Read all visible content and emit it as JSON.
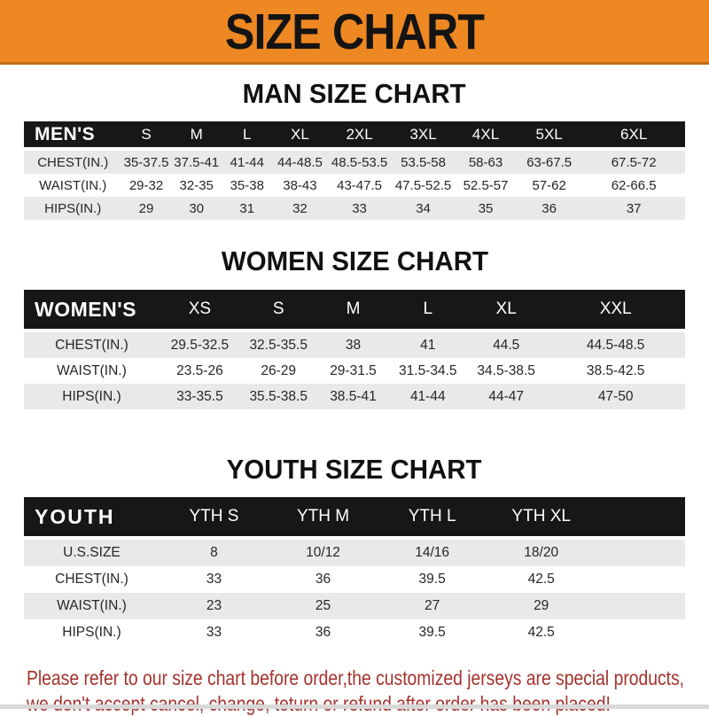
{
  "banner": {
    "title": "SIZE CHART"
  },
  "sections": [
    {
      "heading": "MAN SIZE CHART",
      "header_label": "MEN'S",
      "columns": [
        "S",
        "M",
        "L",
        "XL",
        "2XL",
        "3XL",
        "4XL",
        "5XL",
        "6XL"
      ],
      "rows": [
        {
          "label": "CHEST(IN.)",
          "values": [
            "35-37.5",
            "37.5-41",
            "41-44",
            "44-48.5",
            "48.5-53.5",
            "53.5-58",
            "58-63",
            "63-67.5",
            "67.5-72"
          ]
        },
        {
          "label": "WAIST(IN.)",
          "values": [
            "29-32",
            "32-35",
            "35-38",
            "38-43",
            "43-47.5",
            "47.5-52.5",
            "52.5-57",
            "57-62",
            "62-66.5"
          ]
        },
        {
          "label": "HIPS(IN.)",
          "values": [
            "29",
            "30",
            "31",
            "32",
            "33",
            "34",
            "35",
            "36",
            "37"
          ]
        }
      ]
    },
    {
      "heading": "WOMEN SIZE CHART",
      "header_label": "WOMEN'S",
      "columns": [
        "XS",
        "S",
        "M",
        "L",
        "XL",
        "XXL"
      ],
      "rows": [
        {
          "label": "CHEST(IN.)",
          "values": [
            "29.5-32.5",
            "32.5-35.5",
            "38",
            "41",
            "44.5",
            "44.5-48.5"
          ]
        },
        {
          "label": "WAIST(IN.)",
          "values": [
            "23.5-26",
            "26-29",
            "29-31.5",
            "31.5-34.5",
            "34.5-38.5",
            "38.5-42.5"
          ]
        },
        {
          "label": "HIPS(IN.)",
          "values": [
            "33-35.5",
            "35.5-38.5",
            "38.5-41",
            "41-44",
            "44-47",
            "47-50"
          ]
        }
      ]
    },
    {
      "heading": "YOUTH SIZE CHART",
      "header_label": "YOUTH",
      "columns": [
        "YTH S",
        "YTH M",
        "YTH L",
        "YTH XL"
      ],
      "rows": [
        {
          "label": "U.S.SIZE",
          "values": [
            "8",
            "10/12",
            "14/16",
            "18/20"
          ]
        },
        {
          "label": "CHEST(IN.)",
          "values": [
            "33",
            "36",
            "39.5",
            "42.5"
          ]
        },
        {
          "label": "WAIST(IN.)",
          "values": [
            "23",
            "25",
            "27",
            "29"
          ]
        },
        {
          "label": "HIPS(IN.)",
          "values": [
            "33",
            "36",
            "39.5",
            "42.5"
          ]
        }
      ]
    }
  ],
  "footer": {
    "line1": "Please refer to our size chart before order,the customized jerseys are special products,",
    "line2": "we don't accept cancel, change, teturn or refund after order has been placed!"
  },
  "colors": {
    "banner_orange": "#ee8822",
    "banner_border": "#c06c15",
    "header_bar_black": "#171717",
    "row_gray": "#e9e9e9",
    "footer_red": "#a4332d"
  }
}
